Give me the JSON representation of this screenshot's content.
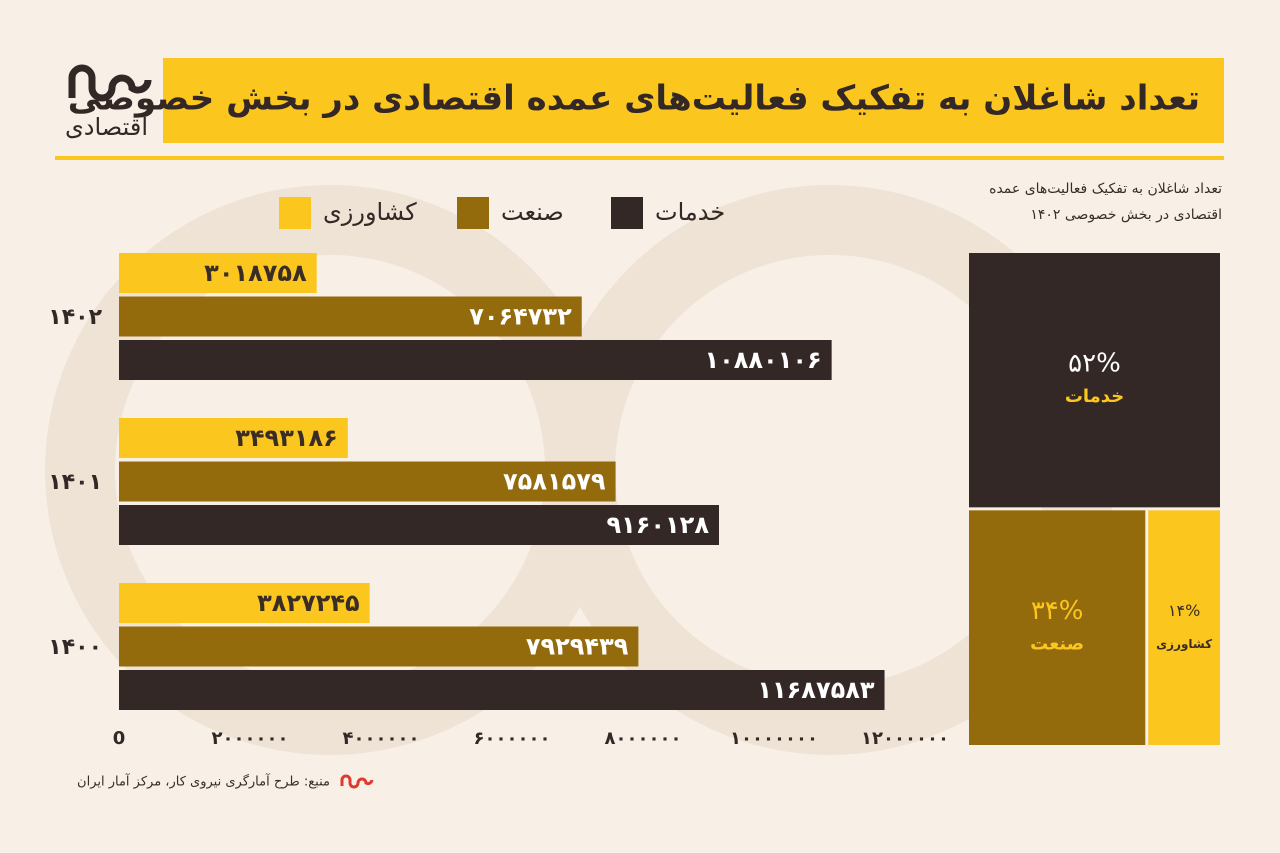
{
  "brand": {
    "logo_text": "اقتصادی"
  },
  "chart_data": [
    {
      "type": "bar",
      "orientation": "horizontal",
      "title": "تعداد شاغلان به تفکیک فعالیت‌های عمده اقتصادی در بخش خصوصی",
      "source": "منبع: طرح آمارگری نیروی کار، مرکز آمار ایران",
      "categories": [
        "۱۴۰۲",
        "۱۴۰۱",
        "۱۴۰۰"
      ],
      "series": [
        {
          "name": "کشاورزی",
          "color": "#fbc71f",
          "label_color": "#3a2d26",
          "values": [
            3018758,
            3493186,
            3827245
          ],
          "value_labels": [
            "۳۰۱۸۷۵۸",
            "۳۴۹۳۱۸۶",
            "۳۸۲۷۲۴۵"
          ]
        },
        {
          "name": "صنعت",
          "color": "#936a0c",
          "label_color": "#ffffff",
          "values": [
            7064732,
            7581579,
            7929439
          ],
          "value_labels": [
            "۷۰۶۴۷۳۲",
            "۷۵۸۱۵۷۹",
            "۷۹۲۹۴۳۹"
          ]
        },
        {
          "name": "خدمات",
          "color": "#332826",
          "label_color": "#ffffff",
          "values": [
            10880106,
            9160128,
            11687583
          ],
          "value_labels": [
            "۱۰۸۸۰۱۰۶",
            "۹۱۶۰۱۲۸",
            "۱۱۶۸۷۵۸۳"
          ]
        }
      ],
      "xlim": [
        0,
        12000000
      ],
      "xticks": [
        0,
        {
          "value": 2000000,
          "label": "۲۰۰۰۰۰۰"
        },
        {
          "value": 4000000,
          "label": "۴۰۰۰۰۰۰"
        },
        {
          "value": 6000000,
          "label": "۶۰۰۰۰۰۰"
        },
        {
          "value": 8000000,
          "label": "۸۰۰۰۰۰۰"
        },
        {
          "value": 10000000,
          "label": "۱۰۰۰۰۰۰۰"
        },
        {
          "value": 12000000,
          "label": "۱۲۰۰۰۰۰۰"
        }
      ],
      "legend": "top",
      "grid": false
    },
    {
      "type": "treemap",
      "title": "تعداد شاغلان به تفکیک فعالیت‌های عمده اقتصادی در بخش خصوصی ۱۴۰۲",
      "categories": [
        "خدمات",
        "صنعت",
        "کشاورزی"
      ],
      "values": [
        52,
        34,
        14
      ],
      "value_labels": [
        "۵۲%",
        "۳۴%",
        "۱۴%"
      ],
      "colors": [
        "#332826",
        "#936a0c",
        "#fbc71f"
      ],
      "label_colors": [
        "#ffffff",
        "#fbc71f",
        "#3a2d26"
      ],
      "name_colors": [
        "#fbc71f",
        "#fbc71f",
        "#3a2d26"
      ]
    }
  ]
}
